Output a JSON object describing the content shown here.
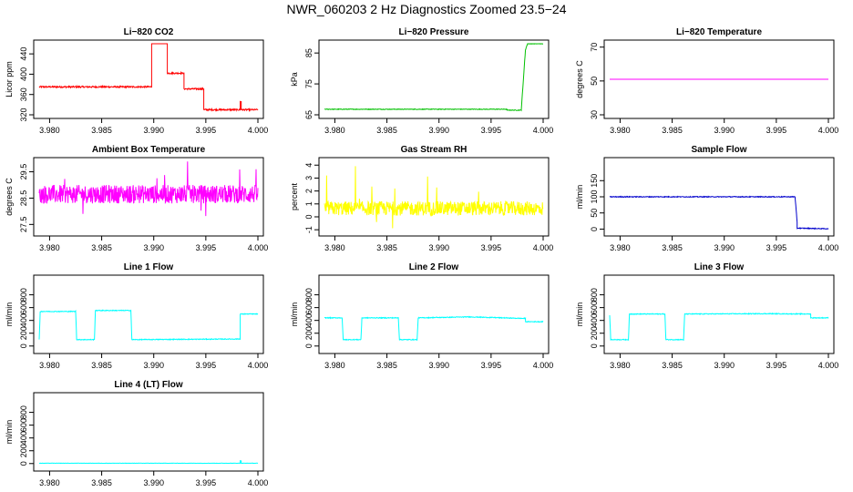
{
  "page_title": "NWR_060203  2 Hz Diagnostics Zoomed 23.5−24",
  "chart_data": [
    {
      "id": "p1",
      "type": "line",
      "title": "Li−820 CO2",
      "ylabel": "Licor ppm",
      "color": "#ff0000",
      "xlim": [
        3.979,
        4.0
      ],
      "ylim": [
        320,
        460
      ],
      "xticks": [
        "3.980",
        "3.985",
        "3.990",
        "3.995",
        "4.000"
      ],
      "yticks": [
        320,
        360,
        400,
        440
      ],
      "noise": 1.5,
      "x": [
        3.979,
        3.9898,
        3.9898,
        3.9913,
        3.9913,
        3.9929,
        3.9929,
        3.9948,
        3.9948,
        3.9983,
        3.9983,
        3.9984,
        3.9984,
        4.0
      ],
      "y": [
        375,
        375,
        462,
        462,
        402,
        402,
        371,
        371,
        330,
        330,
        346,
        346,
        330,
        330
      ]
    },
    {
      "id": "p2",
      "type": "line",
      "title": "Li−820 Pressure",
      "ylabel": "kPa",
      "color": "#00c000",
      "xlim": [
        3.979,
        4.0
      ],
      "ylim": [
        65,
        88
      ],
      "xticks": [
        "3.980",
        "3.985",
        "3.990",
        "3.995",
        "4.000"
      ],
      "yticks": [
        65,
        75,
        85
      ],
      "noise": 0.1,
      "x": [
        3.979,
        3.9965,
        3.9965,
        3.9979,
        3.9983,
        3.9985,
        4.0
      ],
      "y": [
        66.8,
        66.8,
        66.5,
        66.5,
        86,
        88,
        88
      ]
    },
    {
      "id": "p3",
      "type": "line",
      "title": "Li−820 Temperature",
      "ylabel": "degrees C",
      "color": "#ff00ff",
      "xlim": [
        3.979,
        4.0
      ],
      "ylim": [
        30,
        72
      ],
      "xticks": [
        "3.980",
        "3.985",
        "3.990",
        "3.995",
        "4.000"
      ],
      "yticks": [
        30,
        50,
        70
      ],
      "noise": 0,
      "x": [
        3.979,
        4.0
      ],
      "y": [
        51,
        51
      ]
    },
    {
      "id": "p4",
      "type": "line",
      "title": "Ambient Box Temperature",
      "ylabel": "degrees C",
      "color": "#ff00ff",
      "xlim": [
        3.979,
        4.0
      ],
      "ylim": [
        27.2,
        29.9
      ],
      "xticks": [
        "3.980",
        "3.985",
        "3.990",
        "3.995",
        "4.000"
      ],
      "yticks": [
        27.5,
        28.5,
        29.5
      ],
      "noise": 0.35,
      "spikes": 0.9,
      "x": [
        3.979,
        4.0
      ],
      "y": [
        28.65,
        28.65
      ]
    },
    {
      "id": "p5",
      "type": "line",
      "title": "Gas Stream RH",
      "ylabel": "percent",
      "color": "#ffff00",
      "xlim": [
        3.979,
        4.0
      ],
      "ylim": [
        -1.2,
        4.3
      ],
      "xticks": [
        "3.980",
        "3.985",
        "3.990",
        "3.995",
        "4.000"
      ],
      "yticks": [
        -1,
        0,
        1,
        2,
        3,
        4
      ],
      "noise": 0.55,
      "spikes": 2.8,
      "x": [
        3.979,
        4.0
      ],
      "y": [
        0.65,
        0.65
      ]
    },
    {
      "id": "p6",
      "type": "line",
      "title": "Sample Flow",
      "ylabel": "ml/min",
      "color": "#0000cc",
      "xlim": [
        3.979,
        4.0
      ],
      "ylim": [
        -10,
        210
      ],
      "xticks": [
        "3.980",
        "3.985",
        "3.990",
        "3.995",
        "4.000"
      ],
      "yticks": [
        0,
        50,
        100,
        150
      ],
      "noise": 1.2,
      "x": [
        3.979,
        3.9968,
        3.9968,
        3.997,
        3.997,
        4.0
      ],
      "y": [
        100,
        100,
        100,
        20,
        3,
        1
      ]
    },
    {
      "id": "p7",
      "type": "line",
      "title": "Line 1 Flow",
      "ylabel": "ml/min",
      "color": "#00ffff",
      "xlim": [
        3.979,
        4.0
      ],
      "ylim": [
        -60,
        1050
      ],
      "xticks": [
        "3.980",
        "3.985",
        "3.990",
        "3.995",
        "4.000"
      ],
      "yticks": [
        0,
        200,
        400,
        600,
        800
      ],
      "noise": 6,
      "x": [
        3.979,
        3.9791,
        3.9825,
        3.9826,
        3.9843,
        3.9844,
        3.9878,
        3.9879,
        3.9983,
        3.9983,
        4.0
      ],
      "y": [
        100,
        540,
        540,
        100,
        100,
        555,
        555,
        100,
        110,
        500,
        500
      ]
    },
    {
      "id": "p8",
      "type": "line",
      "title": "Line 2 Flow",
      "ylabel": "ml/min",
      "color": "#00ffff",
      "xlim": [
        3.979,
        4.0
      ],
      "ylim": [
        -60,
        1050
      ],
      "xticks": [
        "3.980",
        "3.985",
        "3.990",
        "3.995",
        "4.000"
      ],
      "yticks": [
        0,
        200,
        400,
        600,
        800
      ],
      "noise": 6,
      "x": [
        3.979,
        3.9807,
        3.9808,
        3.9825,
        3.9826,
        3.9861,
        3.9862,
        3.9879,
        3.988,
        3.993,
        3.9983,
        3.9983,
        4.0
      ],
      "y": [
        440,
        440,
        100,
        100,
        440,
        440,
        100,
        100,
        440,
        455,
        430,
        380,
        380
      ]
    },
    {
      "id": "p9",
      "type": "line",
      "title": "Line 3 Flow",
      "ylabel": "ml/min",
      "color": "#00ffff",
      "xlim": [
        3.979,
        4.0
      ],
      "ylim": [
        -60,
        1050
      ],
      "xticks": [
        "3.980",
        "3.985",
        "3.990",
        "3.995",
        "4.000"
      ],
      "yticks": [
        0,
        200,
        400,
        600,
        800
      ],
      "noise": 6,
      "x": [
        3.979,
        3.9791,
        3.9808,
        3.9809,
        3.9843,
        3.9844,
        3.9861,
        3.9862,
        3.994,
        3.9983,
        3.9983,
        4.0
      ],
      "y": [
        480,
        100,
        100,
        500,
        500,
        100,
        100,
        500,
        505,
        500,
        440,
        440
      ]
    },
    {
      "id": "p10",
      "type": "line",
      "title": "Line 4 (LT) Flow",
      "ylabel": "ml/min",
      "color": "#00ffff",
      "xlim": [
        3.979,
        4.0
      ],
      "ylim": [
        -60,
        1050
      ],
      "xticks": [
        "3.980",
        "3.985",
        "3.990",
        "3.995",
        "4.000"
      ],
      "yticks": [
        0,
        200,
        400,
        600,
        800
      ],
      "noise": 2,
      "x": [
        3.979,
        3.9983,
        3.9983,
        3.9984,
        3.9984,
        4.0
      ],
      "y": [
        5,
        5,
        45,
        45,
        5,
        5
      ]
    }
  ]
}
